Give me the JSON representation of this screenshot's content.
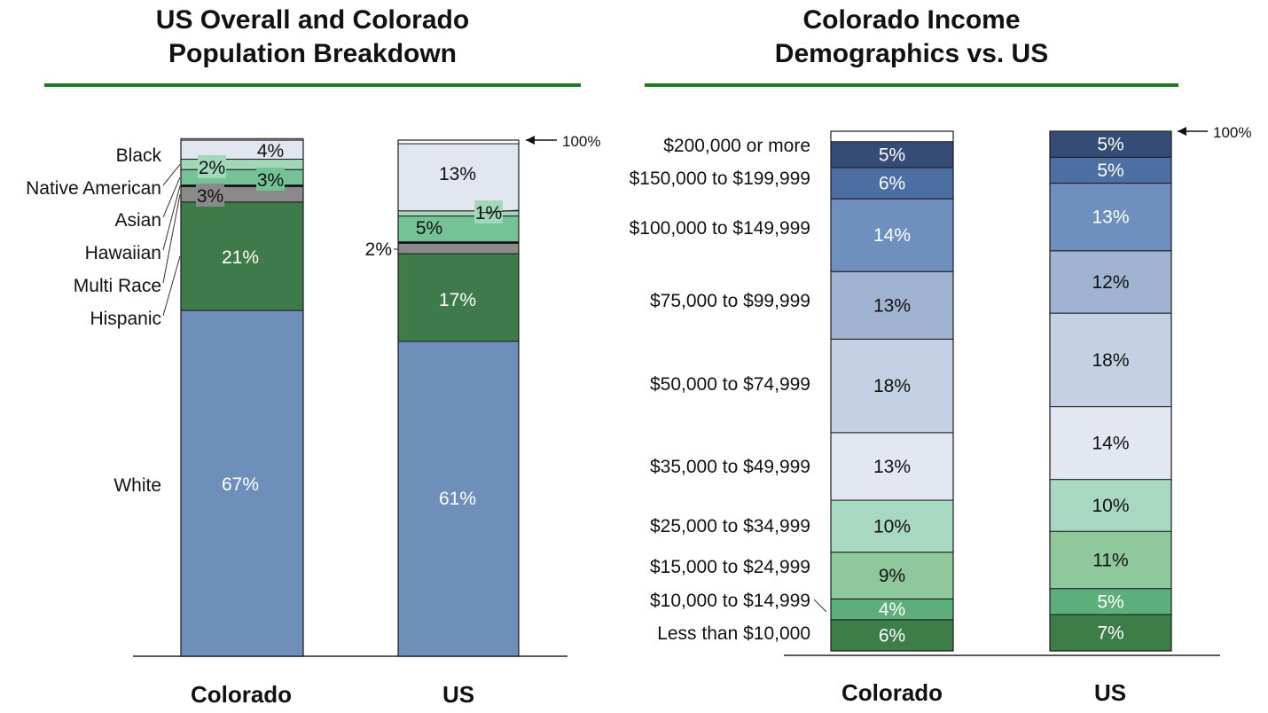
{
  "left_panel": {
    "title": "US Overall and Colorado\nPopulation Breakdown"
  },
  "right_panel": {
    "title": "Colorado Income\nDemographics vs. US"
  },
  "top_marker": "100%",
  "colors": {
    "rule": "#1d7a23",
    "white": "#6f8fbb",
    "hispanic": "#3f7b4a",
    "multi_race": "#8a8a8a",
    "hawaiian": "#111111",
    "asian": "#74c296",
    "native_american": "#a2d7ba",
    "black": "#e1e6f0",
    "income": [
      "#3c7d48",
      "#5cae7b",
      "#8fc99b",
      "#a9d8c2",
      "#e2e7f1",
      "#c4d0e3",
      "#a0b3d1",
      "#6f8fbf",
      "#4c6ea3",
      "#344c76"
    ]
  },
  "chart_data": [
    {
      "type": "bar",
      "stacked": true,
      "title": "US Overall and Colorado Population Breakdown",
      "categories": [
        "Colorado",
        "US"
      ],
      "ylim": [
        0,
        100
      ],
      "series": [
        {
          "name": "White",
          "values": [
            67,
            61
          ],
          "labels": [
            "67%",
            "61%"
          ]
        },
        {
          "name": "Hispanic",
          "values": [
            21,
            17
          ],
          "labels": [
            "21%",
            "17%"
          ]
        },
        {
          "name": "Multi Race",
          "values": [
            3,
            2
          ],
          "labels": [
            "3%",
            "2%"
          ]
        },
        {
          "name": "Hawaiian",
          "values": [
            0.3,
            0.3
          ],
          "labels": [
            "",
            ""
          ]
        },
        {
          "name": "Asian",
          "values": [
            3,
            5
          ],
          "labels": [
            "3%",
            "5%"
          ]
        },
        {
          "name": "Native American",
          "values": [
            2,
            1
          ],
          "labels": [
            "2%",
            "1%"
          ]
        },
        {
          "name": "Black",
          "values": [
            4,
            13
          ],
          "labels": [
            "4%",
            "13%"
          ]
        }
      ],
      "legend_left_order": [
        "Black",
        "Native American",
        "Asian",
        "Hawaiian",
        "Multi Race",
        "Hispanic",
        "White"
      ]
    },
    {
      "type": "bar",
      "stacked": true,
      "title": "Colorado Income Demographics vs. US",
      "categories": [
        "Colorado",
        "US"
      ],
      "ylim": [
        0,
        100
      ],
      "series": [
        {
          "name": "Less than $10,000",
          "values": [
            6,
            7
          ],
          "labels": [
            "6%",
            "7%"
          ]
        },
        {
          "name": "$10,000 to $14,999",
          "values": [
            4,
            5
          ],
          "labels": [
            "4%",
            "5%"
          ]
        },
        {
          "name": "$15,000 to $24,999",
          "values": [
            9,
            11
          ],
          "labels": [
            "9%",
            "11%"
          ]
        },
        {
          "name": "$25,000 to $34,999",
          "values": [
            10,
            10
          ],
          "labels": [
            "10%",
            "10%"
          ]
        },
        {
          "name": "$35,000 to $49,999",
          "values": [
            13,
            14
          ],
          "labels": [
            "13%",
            "14%"
          ]
        },
        {
          "name": "$50,000 to $74,999",
          "values": [
            18,
            18
          ],
          "labels": [
            "18%",
            "18%"
          ]
        },
        {
          "name": "$75,000 to $99,999",
          "values": [
            13,
            12
          ],
          "labels": [
            "13%",
            "12%"
          ]
        },
        {
          "name": "$100,000 to $149,999",
          "values": [
            14,
            13
          ],
          "labels": [
            "14%",
            "13%"
          ]
        },
        {
          "name": "$150,000 to $199,999",
          "values": [
            6,
            5
          ],
          "labels": [
            "6%",
            "5%"
          ]
        },
        {
          "name": "$200,000 or more",
          "values": [
            5,
            5
          ],
          "labels": [
            "5%",
            "5%"
          ]
        }
      ]
    }
  ]
}
